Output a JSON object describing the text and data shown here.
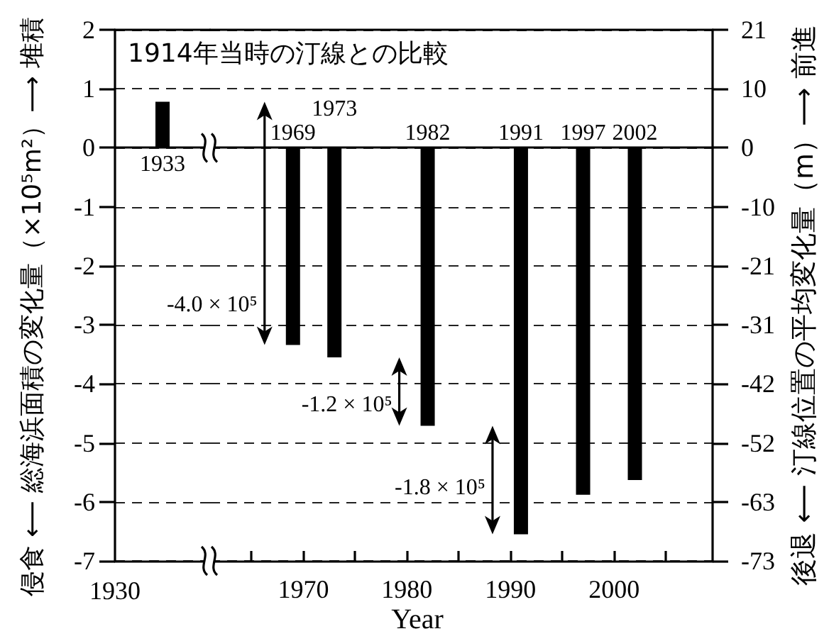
{
  "chart_data": [
    {
      "type": "bar",
      "ylabel": "侵食 ⟵ 総海浜面積の変化量（×10⁵m²）⟶ 堆積",
      "categories": [
        "1933"
      ],
      "values": [
        0.78
      ],
      "color": "#000000",
      "ylim": [
        -7,
        2
      ],
      "yticks": [
        -7,
        -6,
        -5,
        -4,
        -3,
        -2,
        -1,
        0,
        1,
        2
      ],
      "grid": "y",
      "annotations": [
        "1930"
      ]
    },
    {
      "type": "bar",
      "title": "1914年当時の汀線との比較",
      "xlabel": "Year",
      "y2label": "後退 ⟵ 汀線位置の平均変化量（m）⟶ 前進",
      "x": [
        1969,
        1973,
        1982,
        1991,
        1997,
        2002
      ],
      "values": [
        -3.34,
        -3.55,
        -4.71,
        -6.55,
        -5.88,
        -5.63
      ],
      "color": "#000000",
      "xlim": [
        1961,
        2009.5
      ],
      "xticks": [
        {
          "value": 1965,
          "label": null
        },
        1970,
        {
          "value": 1975,
          "label": null
        },
        1980,
        {
          "value": 1985,
          "label": null
        },
        1990,
        {
          "value": 1995,
          "label": null
        },
        2000,
        {
          "value": 2005,
          "label": null
        }
      ],
      "ylim": [
        -7,
        2
      ],
      "y2lim": [
        -73.15,
        20.9
      ],
      "y2ticks": [
        {
          "value": -73.15,
          "label": "-73"
        },
        {
          "value": -62.7,
          "label": "-63"
        },
        {
          "value": -52.25,
          "label": "-52"
        },
        {
          "value": -41.8,
          "label": "-42"
        },
        {
          "value": -31.35,
          "label": "-31"
        },
        {
          "value": -20.9,
          "label": "-21"
        },
        {
          "value": -10.45,
          "label": "-10"
        },
        0,
        {
          "value": 10.45,
          "label": "10"
        },
        {
          "value": 20.9,
          "label": "21"
        }
      ],
      "grid": "y",
      "annotations": [
        {
          "text": "1969",
          "x": 1969,
          "y": 0
        },
        {
          "text": "1973",
          "x": 1973,
          "y": 0
        },
        {
          "text": "1982",
          "x": 1982,
          "y": 0
        },
        {
          "text": "1991",
          "x": 1991,
          "y": 0
        },
        {
          "text": "1997",
          "x": 1997,
          "y": 0
        },
        {
          "text": "2002",
          "x": 2002,
          "y": 0
        },
        {
          "text": "-4.0 × 10⁵",
          "x": 1969,
          "y": -3.34
        },
        {
          "text": "-1.2 × 10⁵",
          "x": 1982,
          "y": -4.71
        },
        {
          "text": "-1.8 × 10⁵",
          "x": 1991,
          "y": -6.55
        }
      ]
    }
  ]
}
